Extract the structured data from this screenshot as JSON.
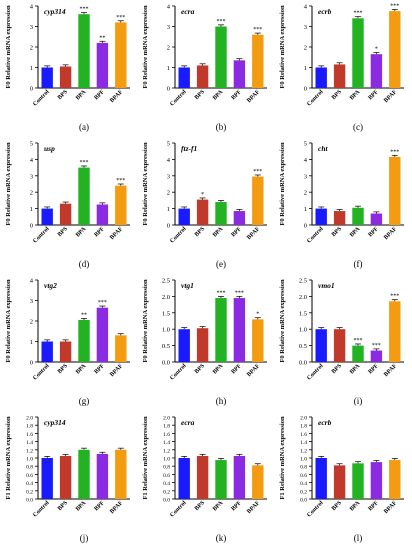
{
  "colors": {
    "control": "#1a1aff",
    "bps": "#c0392b",
    "bpa": "#22b222",
    "bpf": "#8a2be2",
    "bpaf": "#f39c12",
    "axis": "#000000"
  },
  "chart_data": [
    {
      "type": "bar",
      "panel_label": "(a)",
      "gene": "cyp314",
      "ylabel": "F0 Relative mRNA expression",
      "ylim": [
        0,
        4
      ],
      "yticks": [
        "0",
        "1",
        "2",
        "3",
        "4"
      ],
      "categories": [
        "Control",
        "BPS",
        "BPA",
        "BPF",
        "BPAF"
      ],
      "values": [
        1.0,
        1.05,
        3.6,
        2.2,
        3.2
      ],
      "significance": [
        "",
        "",
        "***",
        "**",
        "***"
      ]
    },
    {
      "type": "bar",
      "panel_label": "(b)",
      "gene": "ecra",
      "ylabel": "F0 Relative mRNA expression",
      "ylim": [
        0,
        4
      ],
      "yticks": [
        "0",
        "1",
        "2",
        "3",
        "4"
      ],
      "categories": [
        "Control",
        "BPS",
        "BPA",
        "BPF",
        "BPAF"
      ],
      "values": [
        1.0,
        1.1,
        3.0,
        1.35,
        2.6
      ],
      "significance": [
        "",
        "",
        "***",
        "",
        "***"
      ]
    },
    {
      "type": "bar",
      "panel_label": "(c)",
      "gene": "ecrb",
      "ylabel": "F0 Relative mRNA expression",
      "ylim": [
        0,
        4
      ],
      "yticks": [
        "0",
        "1",
        "2",
        "3",
        "4"
      ],
      "categories": [
        "Control",
        "BPS",
        "BPA",
        "BPF",
        "BPAF"
      ],
      "values": [
        1.0,
        1.15,
        3.4,
        1.65,
        3.75
      ],
      "significance": [
        "",
        "",
        "***",
        "*",
        "***"
      ]
    },
    {
      "type": "bar",
      "panel_label": "(d)",
      "gene": "usp",
      "ylabel": "F0 Relative mRNA expression",
      "ylim": [
        0,
        5
      ],
      "yticks": [
        "0",
        "1",
        "2",
        "3",
        "4",
        "5"
      ],
      "categories": [
        "Control",
        "BPS",
        "BPA",
        "BPF",
        "BPAF"
      ],
      "values": [
        1.0,
        1.3,
        3.5,
        1.25,
        2.4
      ],
      "significance": [
        "",
        "",
        "***",
        "",
        "***"
      ]
    },
    {
      "type": "bar",
      "panel_label": "(e)",
      "gene": "ftz-f1",
      "ylabel": "F0 Relative mRNA expression",
      "ylim": [
        0,
        5
      ],
      "yticks": [
        "0",
        "1",
        "2",
        "3",
        "4",
        "5"
      ],
      "categories": [
        "Control",
        "BPS",
        "BPA",
        "BPF",
        "BPAF"
      ],
      "values": [
        1.0,
        1.55,
        1.4,
        0.85,
        2.95
      ],
      "significance": [
        "",
        "*",
        "",
        "",
        "***"
      ]
    },
    {
      "type": "bar",
      "panel_label": "(f)",
      "gene": "cht",
      "ylabel": "F0 Relative mRNA expression",
      "ylim": [
        0,
        5
      ],
      "yticks": [
        "0",
        "1",
        "2",
        "3",
        "4",
        "5"
      ],
      "categories": [
        "Control",
        "BPS",
        "BPA",
        "BPF",
        "BPAF"
      ],
      "values": [
        1.0,
        0.85,
        1.05,
        0.7,
        4.15
      ],
      "significance": [
        "",
        "",
        "",
        "",
        "***"
      ]
    },
    {
      "type": "bar",
      "panel_label": "(g)",
      "gene": "vtg2",
      "ylabel": "F0 Relative mRNA expression",
      "ylim": [
        0,
        4
      ],
      "yticks": [
        "0",
        "1",
        "2",
        "3",
        "4"
      ],
      "categories": [
        "Control",
        "BPS",
        "BPA",
        "BPF",
        "BPAF"
      ],
      "values": [
        1.0,
        1.0,
        2.05,
        2.65,
        1.3
      ],
      "significance": [
        "",
        "",
        "**",
        "***",
        ""
      ]
    },
    {
      "type": "bar",
      "panel_label": "(h)",
      "gene": "vtg1",
      "ylabel": "F0 Relative mRNA expression",
      "ylim": [
        0,
        2.5
      ],
      "yticks": [
        "0.0",
        "0.5",
        "1.0",
        "1.5",
        "2.0",
        "2.5"
      ],
      "categories": [
        "Control",
        "BPS",
        "BPA",
        "BPF",
        "BPAF"
      ],
      "values": [
        1.0,
        1.03,
        1.95,
        1.95,
        1.3
      ],
      "significance": [
        "",
        "",
        "***",
        "***",
        "*"
      ]
    },
    {
      "type": "bar",
      "panel_label": "(i)",
      "gene": "vmo1",
      "ylabel": "F0 Relative mRNA expression",
      "ylim": [
        0,
        2.5
      ],
      "yticks": [
        "0.0",
        "0.5",
        "1.0",
        "1.5",
        "2.0",
        "2.5"
      ],
      "categories": [
        "Control",
        "BPS",
        "BPA",
        "BPF",
        "BPAF"
      ],
      "values": [
        1.0,
        1.0,
        0.5,
        0.35,
        1.85
      ],
      "significance": [
        "",
        "",
        "***",
        "***",
        "***"
      ]
    },
    {
      "type": "bar",
      "panel_label": "(j)",
      "gene": "cyp314",
      "ylabel": "F1 Relative mRNA expression",
      "ylim": [
        0,
        2.0
      ],
      "yticks": [
        "0.0",
        "0.2",
        "0.4",
        "0.6",
        "0.8",
        "1.0",
        "1.2",
        "1.4",
        "1.6",
        "1.8",
        "2.0"
      ],
      "categories": [
        "Control",
        "BPS",
        "BPA",
        "BPF",
        "BPAF"
      ],
      "values": [
        1.0,
        1.05,
        1.2,
        1.1,
        1.2
      ],
      "significance": [
        "",
        "",
        "",
        "",
        ""
      ]
    },
    {
      "type": "bar",
      "panel_label": "(k)",
      "gene": "ecra",
      "ylabel": "F1 Relative mRNA expression",
      "ylim": [
        0,
        2.0
      ],
      "yticks": [
        "0.0",
        "0.2",
        "0.4",
        "0.6",
        "0.8",
        "1.0",
        "1.2",
        "1.4",
        "1.6",
        "1.8",
        "2.0"
      ],
      "categories": [
        "Control",
        "BPS",
        "BPA",
        "BPF",
        "BPAF"
      ],
      "values": [
        1.0,
        1.05,
        0.95,
        1.05,
        0.82
      ],
      "significance": [
        "",
        "",
        "",
        "",
        ""
      ]
    },
    {
      "type": "bar",
      "panel_label": "(l)",
      "gene": "ecrb",
      "ylabel": "F1 Relative mRNA expression",
      "ylim": [
        0,
        2.0
      ],
      "yticks": [
        "0.0",
        "0.2",
        "0.4",
        "0.6",
        "0.8",
        "1.0",
        "1.2",
        "1.4",
        "1.6",
        "1.8",
        "2.0"
      ],
      "categories": [
        "Control",
        "BPS",
        "BPA",
        "BPF",
        "BPAF"
      ],
      "values": [
        1.0,
        0.82,
        0.87,
        0.9,
        0.95
      ],
      "significance": [
        "",
        "",
        "",
        "",
        ""
      ]
    }
  ]
}
